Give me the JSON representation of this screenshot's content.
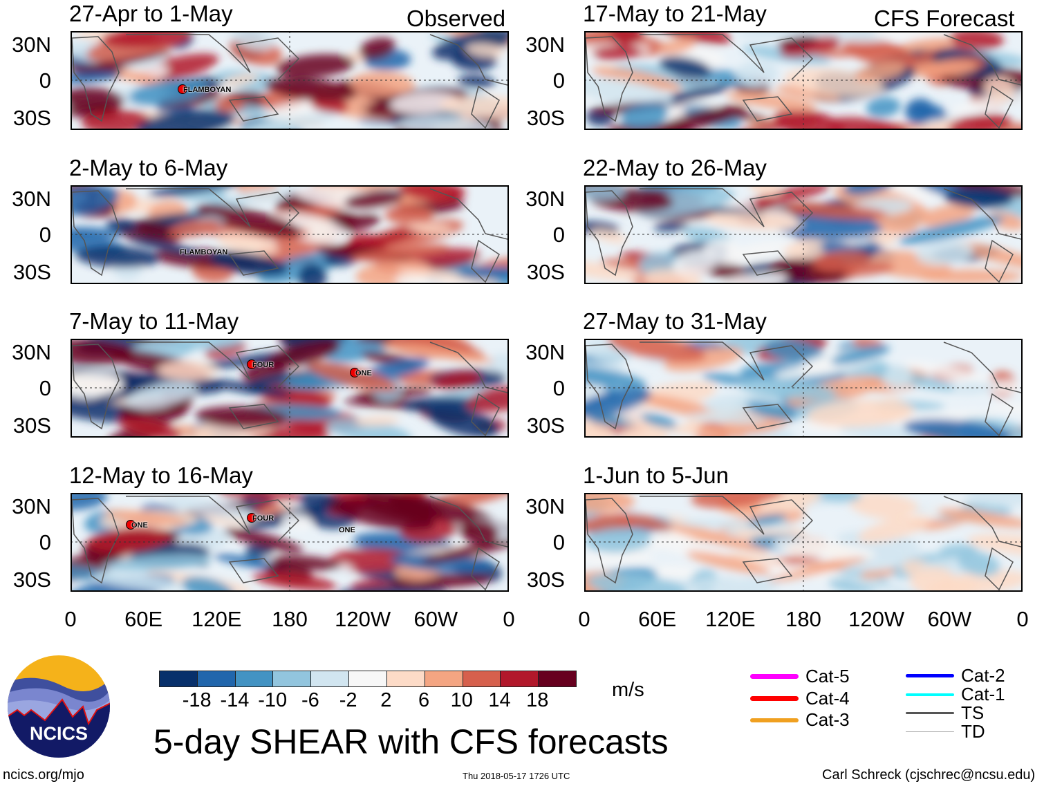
{
  "headers": {
    "left": "Observed",
    "right": "CFS Forecast"
  },
  "lat_labels": [
    "30N",
    "0",
    "30S"
  ],
  "lon_labels": [
    "0",
    "60E",
    "120E",
    "180",
    "120W",
    "60W",
    "0"
  ],
  "panels": [
    {
      "title": "27-Apr to 1-May",
      "column": "left",
      "row": 0,
      "storms": [
        {
          "name": "FLAMBOYAN",
          "marker": true
        }
      ]
    },
    {
      "title": "2-May to 6-May",
      "column": "left",
      "row": 1,
      "storms": [
        {
          "name": "FLAMBOYAN",
          "marker": false
        }
      ]
    },
    {
      "title": "7-May to 11-May",
      "column": "left",
      "row": 2,
      "storms": [
        {
          "name": "FOUR",
          "marker": true
        },
        {
          "name": "ONE",
          "marker": true
        }
      ]
    },
    {
      "title": "12-May to 16-May",
      "column": "left",
      "row": 3,
      "storms": [
        {
          "name": "ONE",
          "marker": true
        },
        {
          "name": "FOUR",
          "marker": true
        },
        {
          "name": "ONE",
          "marker": false
        }
      ]
    },
    {
      "title": "17-May to 21-May",
      "column": "right",
      "row": 0,
      "storms": []
    },
    {
      "title": "22-May to 26-May",
      "column": "right",
      "row": 1,
      "storms": []
    },
    {
      "title": "27-May to 31-May",
      "column": "right",
      "row": 2,
      "storms": []
    },
    {
      "title": "1-Jun to 5-Jun",
      "column": "right",
      "row": 3,
      "storms": []
    }
  ],
  "colorbar": {
    "colors": [
      "#08306b",
      "#2166ac",
      "#4393c3",
      "#92c5de",
      "#d1e5f0",
      "#f7f7f7",
      "#fddbc7",
      "#f4a582",
      "#d6604d",
      "#b2182b",
      "#67001f"
    ],
    "labels": [
      "-18",
      "-14",
      "-10",
      "-6",
      "-2",
      "2",
      "6",
      "10",
      "14",
      "18"
    ],
    "units": "m/s"
  },
  "legend": [
    {
      "label": "Cat-5",
      "color": "#ff00ff"
    },
    {
      "label": "Cat-4",
      "color": "#ff0000"
    },
    {
      "label": "Cat-3",
      "color": "#f0a020"
    },
    {
      "label": "Cat-2",
      "color": "#0000ff"
    },
    {
      "label": "Cat-1",
      "color": "#00ffff"
    },
    {
      "label": "TS",
      "color": "#555555"
    },
    {
      "label": "TD",
      "color": "#aaaaaa"
    }
  ],
  "title": "5-day SHEAR with CFS forecasts",
  "logo": {
    "text": "NCICS"
  },
  "footer": {
    "url": "ncics.org/mjo",
    "timestamp": "Thu 2018-05-17 1726 UTC",
    "credit": "Carl Schreck (cjschrec@ncsu.edu)"
  }
}
